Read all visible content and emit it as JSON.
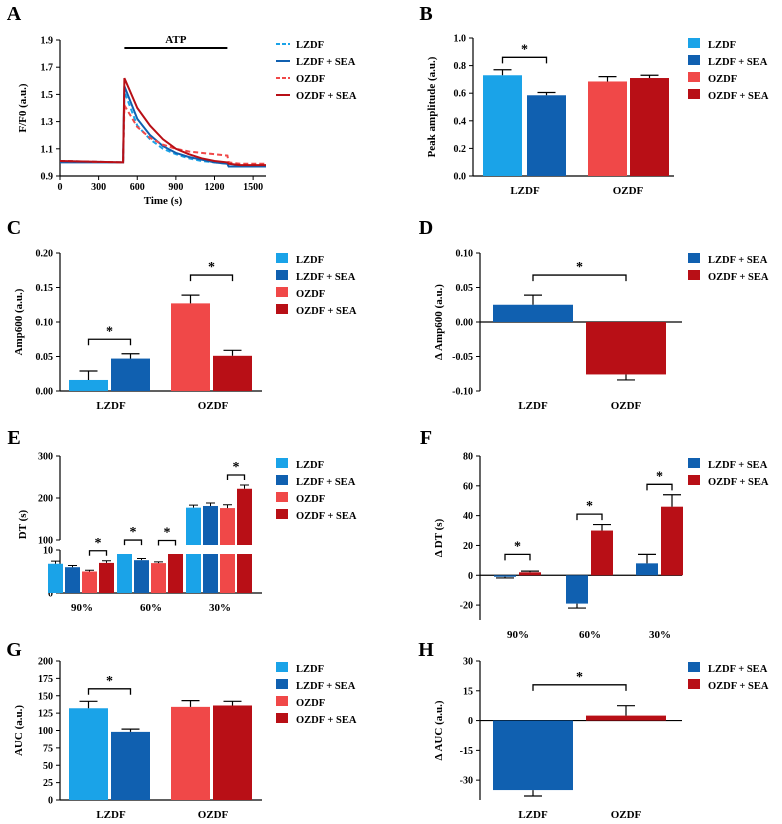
{
  "colors": {
    "lzdf": "#1aa3e8",
    "lzdf_sea": "#1060b0",
    "ozdf": "#f04848",
    "ozdf_sea": "#b80f16",
    "axis": "#000000"
  },
  "chart_data": [
    {
      "panel": "A",
      "type": "line",
      "xlabel": "Time (s)",
      "ylabel": "F/F0 (a.u.)",
      "xlim": [
        0,
        1600
      ],
      "ylim": [
        0.9,
        1.9
      ],
      "xticks": [
        0,
        300,
        600,
        900,
        1200,
        1500
      ],
      "yticks": [
        0.9,
        1.1,
        1.3,
        1.5,
        1.7,
        1.9
      ],
      "annotation": {
        "label": "ATP",
        "x_start": 500,
        "x_end": 1300
      },
      "legend": [
        "LZDF",
        "LZDF + SEA",
        "OZDF",
        "OZDF + SEA"
      ],
      "series": [
        {
          "name": "LZDF",
          "style": "dashed",
          "color": "lzdf",
          "x": [
            0,
            490,
            500,
            600,
            700,
            800,
            900,
            1000,
            1100,
            1200,
            1300,
            1310,
            1400,
            1500,
            1600
          ],
          "y": [
            1.01,
            1.0,
            1.52,
            1.27,
            1.17,
            1.1,
            1.06,
            1.03,
            1.01,
            1.0,
            0.99,
            0.97,
            0.97,
            0.97,
            0.97
          ]
        },
        {
          "name": "LZDF + SEA",
          "style": "solid",
          "color": "lzdf_sea",
          "x": [
            0,
            490,
            500,
            600,
            700,
            800,
            900,
            1000,
            1100,
            1200,
            1300,
            1310,
            1400,
            1500,
            1600
          ],
          "y": [
            1.0,
            1.0,
            1.56,
            1.32,
            1.2,
            1.12,
            1.07,
            1.04,
            1.02,
            1.0,
            0.99,
            0.97,
            0.97,
            0.97,
            0.97
          ]
        },
        {
          "name": "OZDF",
          "style": "dashed",
          "color": "ozdf",
          "x": [
            0,
            490,
            500,
            600,
            700,
            800,
            900,
            1000,
            1100,
            1200,
            1300,
            1310,
            1400,
            1500,
            1600
          ],
          "y": [
            1.01,
            1.0,
            1.42,
            1.26,
            1.18,
            1.13,
            1.1,
            1.08,
            1.07,
            1.06,
            1.05,
            1.0,
            0.99,
            0.99,
            0.99
          ]
        },
        {
          "name": "OZDF + SEA",
          "style": "solid",
          "color": "ozdf_sea",
          "x": [
            0,
            490,
            500,
            600,
            700,
            800,
            900,
            1000,
            1100,
            1200,
            1300,
            1310,
            1400,
            1500,
            1600
          ],
          "y": [
            1.01,
            1.0,
            1.62,
            1.4,
            1.27,
            1.17,
            1.1,
            1.06,
            1.03,
            1.01,
            1.0,
            0.99,
            0.98,
            0.98,
            0.98
          ]
        }
      ]
    },
    {
      "panel": "B",
      "type": "bar",
      "ylabel": "Peak amplitude (a.u.)",
      "ylim": [
        0,
        1.0
      ],
      "yticks": [
        "0.0",
        "0.2",
        "0.4",
        "0.6",
        "0.8",
        "1.0"
      ],
      "groups": [
        "LZDF",
        "OZDF"
      ],
      "bars": [
        {
          "group": 0,
          "color": "lzdf",
          "value": 0.73,
          "err": 0.04
        },
        {
          "group": 0,
          "color": "lzdf_sea",
          "value": 0.585,
          "err": 0.02
        },
        {
          "group": 1,
          "color": "ozdf",
          "value": 0.685,
          "err": 0.035
        },
        {
          "group": 1,
          "color": "ozdf_sea",
          "value": 0.71,
          "err": 0.02
        }
      ],
      "sig": [
        {
          "a": 0,
          "b": 1,
          "y": 0.86,
          "label": "*"
        }
      ],
      "legend": [
        "LZDF",
        "LZDF + SEA",
        "OZDF",
        "OZDF + SEA"
      ]
    },
    {
      "panel": "C",
      "type": "bar",
      "ylabel": "Amp600 (a.u.)",
      "ylim": [
        0,
        0.2
      ],
      "yticks": [
        "0.00",
        "0.05",
        "0.10",
        "0.15",
        "0.20"
      ],
      "groups": [
        "LZDF",
        "OZDF"
      ],
      "bars": [
        {
          "group": 0,
          "color": "lzdf",
          "value": 0.016,
          "err": 0.013
        },
        {
          "group": 0,
          "color": "lzdf_sea",
          "value": 0.047,
          "err": 0.007
        },
        {
          "group": 1,
          "color": "ozdf",
          "value": 0.127,
          "err": 0.012
        },
        {
          "group": 1,
          "color": "ozdf_sea",
          "value": 0.051,
          "err": 0.008
        }
      ],
      "sig": [
        {
          "a": 0,
          "b": 1,
          "y": 0.075,
          "label": "*"
        },
        {
          "a": 2,
          "b": 3,
          "y": 0.168,
          "label": "*"
        }
      ],
      "legend": [
        "LZDF",
        "LZDF + SEA",
        "OZDF",
        "OZDF + SEA"
      ]
    },
    {
      "panel": "D",
      "type": "bar",
      "ylabel": "Δ Amp600 (a.u.)",
      "ylim": [
        -0.1,
        0.1
      ],
      "yticks": [
        "-0.10",
        "-0.05",
        "0.00",
        "0.05",
        "0.10"
      ],
      "groups": [
        "LZDF",
        "OZDF"
      ],
      "bars": [
        {
          "group": 0,
          "color": "lzdf_sea",
          "value": 0.025,
          "err": 0.014
        },
        {
          "group": 1,
          "color": "ozdf_sea",
          "value": -0.076,
          "err": 0.008
        }
      ],
      "sig": [
        {
          "a": 0,
          "b": 1,
          "y": 0.068,
          "label": "*"
        }
      ],
      "legend": [
        "LZDF + SEA",
        "OZDF + SEA"
      ]
    },
    {
      "panel": "E",
      "type": "bar",
      "ylabel": "DT (s)",
      "broken_axis": true,
      "ylim_lower": [
        0,
        10
      ],
      "ylim_upper": [
        100,
        300
      ],
      "yticks_lower": [
        "0",
        "5",
        "10"
      ],
      "yticks_upper": [
        "100",
        "200",
        "300"
      ],
      "groups": [
        "90%",
        "60%",
        "30%"
      ],
      "bars": [
        {
          "group": 0,
          "color": "lzdf",
          "value": 6.8,
          "err": 0.6
        },
        {
          "group": 0,
          "color": "lzdf_sea",
          "value": 6.0,
          "err": 0.4
        },
        {
          "group": 0,
          "color": "ozdf",
          "value": 5.0,
          "err": 0.3
        },
        {
          "group": 0,
          "color": "ozdf_sea",
          "value": 7.0,
          "err": 0.5
        },
        {
          "group": 1,
          "color": "lzdf",
          "value": 70,
          "err": 6
        },
        {
          "group": 1,
          "color": "lzdf_sea",
          "value": 52,
          "err": 4
        },
        {
          "group": 1,
          "color": "ozdf",
          "value": 45,
          "err": 3
        },
        {
          "group": 1,
          "color": "ozdf_sea",
          "value": 70,
          "err": 5
        },
        {
          "group": 2,
          "color": "lzdf",
          "value": 177,
          "err": 6
        },
        {
          "group": 2,
          "color": "lzdf_sea",
          "value": 181,
          "err": 7
        },
        {
          "group": 2,
          "color": "ozdf",
          "value": 176,
          "err": 8
        },
        {
          "group": 2,
          "color": "ozdf_sea",
          "value": 222,
          "err": 9
        }
      ],
      "sig": [
        {
          "a": 2,
          "b": 3,
          "label": "*"
        },
        {
          "a": 4,
          "b": 5,
          "label": "*"
        },
        {
          "a": 6,
          "b": 7,
          "label": "*"
        },
        {
          "a": 10,
          "b": 11,
          "label": "*"
        }
      ],
      "legend": [
        "LZDF",
        "LZDF + SEA",
        "OZDF",
        "OZDF + SEA"
      ]
    },
    {
      "panel": "F",
      "type": "bar",
      "ylabel": "Δ DT (s)",
      "ylim": [
        -30,
        80
      ],
      "yticks": [
        "-20",
        "0",
        "20",
        "40",
        "60",
        "80"
      ],
      "groups": [
        "90%",
        "60%",
        "30%"
      ],
      "bars": [
        {
          "group": 0,
          "color": "lzdf_sea",
          "value": -1,
          "err": 0.8
        },
        {
          "group": 0,
          "color": "ozdf_sea",
          "value": 2,
          "err": 0.8
        },
        {
          "group": 1,
          "color": "lzdf_sea",
          "value": -19,
          "err": 3
        },
        {
          "group": 1,
          "color": "ozdf_sea",
          "value": 30,
          "err": 4
        },
        {
          "group": 2,
          "color": "lzdf_sea",
          "value": 8,
          "err": 6
        },
        {
          "group": 2,
          "color": "ozdf_sea",
          "value": 46,
          "err": 8
        }
      ],
      "sig": [
        {
          "a": 0,
          "b": 1,
          "y": 14,
          "label": "*"
        },
        {
          "a": 2,
          "b": 3,
          "y": 41,
          "label": "*"
        },
        {
          "a": 4,
          "b": 5,
          "y": 61,
          "label": "*"
        }
      ],
      "legend": [
        "LZDF + SEA",
        "OZDF + SEA"
      ]
    },
    {
      "panel": "G",
      "type": "bar",
      "ylabel": "AUC (a.u.)",
      "ylim": [
        0,
        200
      ],
      "yticks": [
        "0",
        "25",
        "50",
        "75",
        "100",
        "125",
        "150",
        "175",
        "200"
      ],
      "groups": [
        "LZDF",
        "OZDF"
      ],
      "bars": [
        {
          "group": 0,
          "color": "lzdf",
          "value": 132,
          "err": 10
        },
        {
          "group": 0,
          "color": "lzdf_sea",
          "value": 98,
          "err": 4
        },
        {
          "group": 1,
          "color": "ozdf",
          "value": 134,
          "err": 9
        },
        {
          "group": 1,
          "color": "ozdf_sea",
          "value": 136,
          "err": 6
        }
      ],
      "sig": [
        {
          "a": 0,
          "b": 1,
          "y": 160,
          "label": "*"
        }
      ],
      "legend": [
        "LZDF",
        "LZDF + SEA",
        "OZDF",
        "OZDF + SEA"
      ]
    },
    {
      "panel": "H",
      "type": "bar",
      "ylabel": "Δ AUC (a.u.)",
      "ylim": [
        -40,
        30
      ],
      "yticks": [
        "-30",
        "-15",
        "0",
        "15",
        "30"
      ],
      "groups": [
        "LZDF",
        "OZDF"
      ],
      "bars": [
        {
          "group": 0,
          "color": "lzdf_sea",
          "value": -35,
          "err": 3
        },
        {
          "group": 1,
          "color": "ozdf_sea",
          "value": 2.5,
          "err": 5
        }
      ],
      "sig": [
        {
          "a": 0,
          "b": 1,
          "y": 18,
          "label": "*"
        }
      ],
      "legend": [
        "LZDF + SEA",
        "OZDF + SEA"
      ]
    }
  ]
}
